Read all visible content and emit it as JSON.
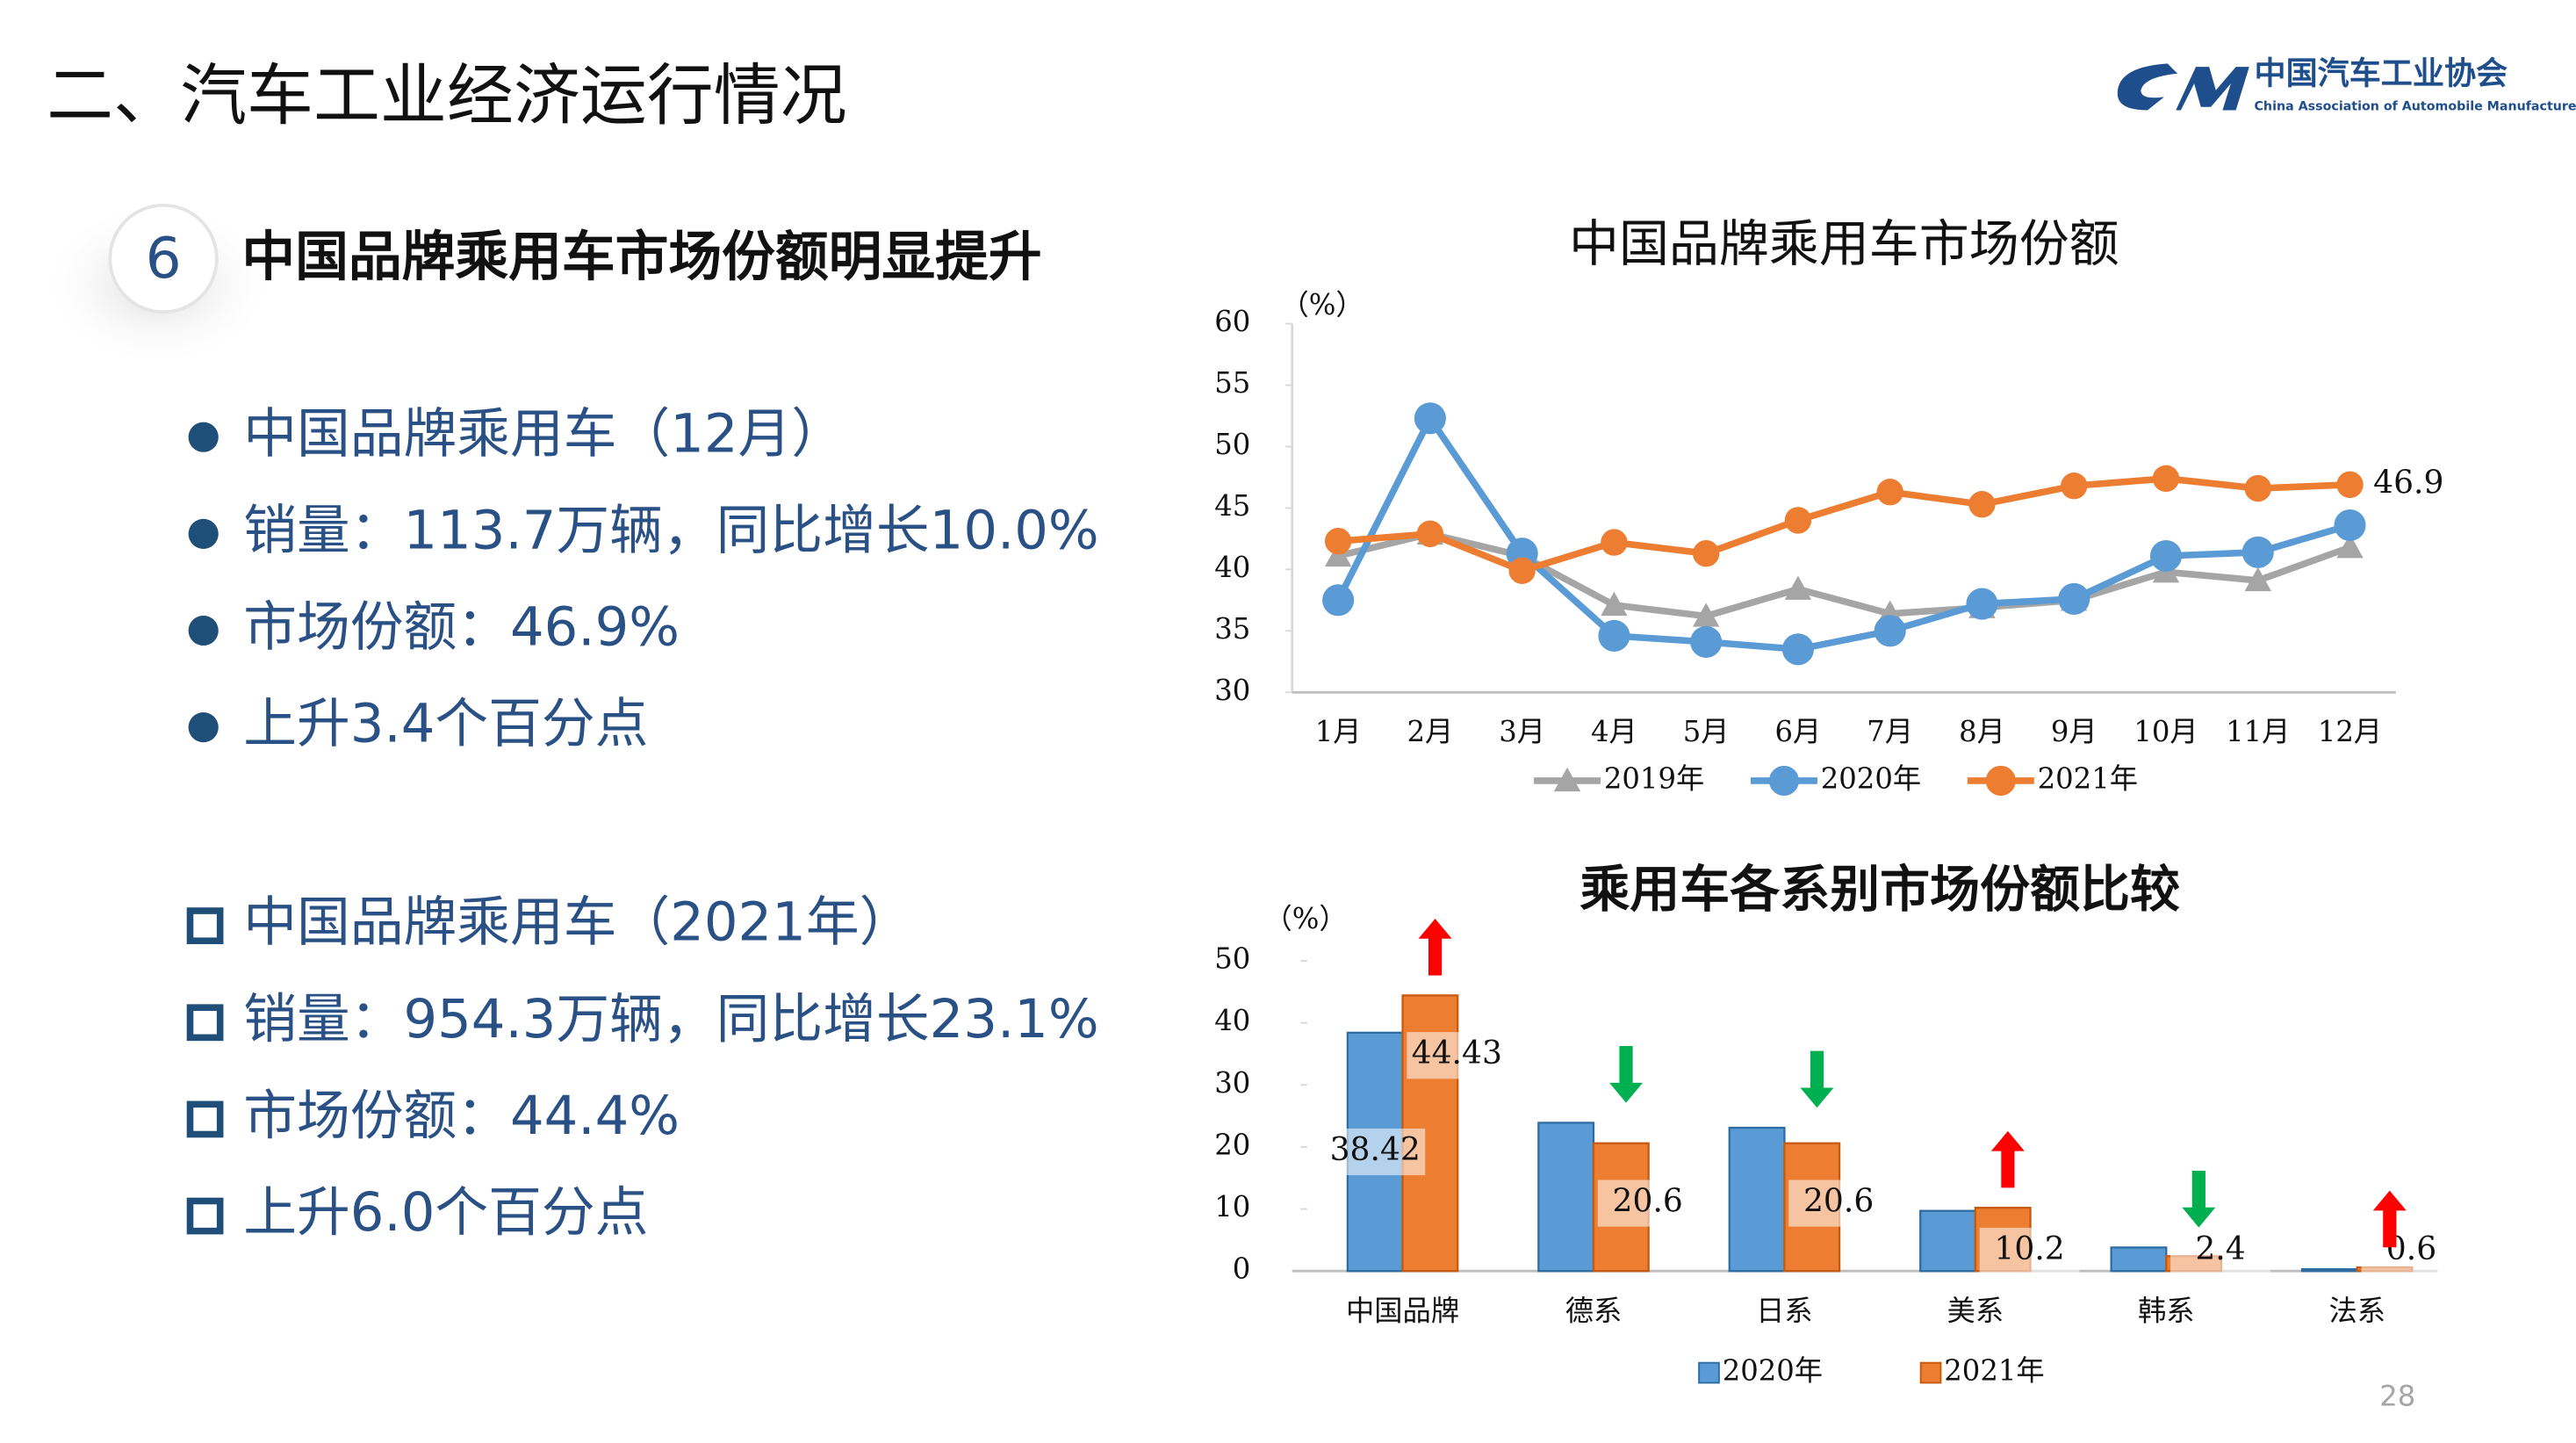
{
  "header": {
    "title": "二、汽车工业经济运行情况",
    "logo_name": "中国汽车工业协会",
    "logo_english": "China Association of Automobile Manufacturers"
  },
  "section": {
    "number": "6",
    "heading": "中国品牌乘用车市场份额明显提升"
  },
  "bullets_month": [
    "中国品牌乘用车（12月）",
    "销量：113.7万辆，同比增长10.0%",
    "市场份额：46.9%",
    "上升3.4个百分点"
  ],
  "bullets_year": [
    "中国品牌乘用车（2021年）",
    "销量：954.3万辆，同比增长23.1%",
    "市场份额：44.4%",
    "上升6.0个百分点"
  ],
  "page_number": "28",
  "chart_data": [
    {
      "type": "line",
      "title": "中国品牌乘用车市场份额",
      "y_unit": "（%）",
      "categories": [
        "1月",
        "2月",
        "3月",
        "4月",
        "5月",
        "6月",
        "7月",
        "8月",
        "9月",
        "10月",
        "11月",
        "12月"
      ],
      "series": [
        {
          "name": "2019年",
          "color": "#a5a5a5",
          "marker": "triangle",
          "values": [
            41.1,
            42.9,
            41.1,
            37.1,
            36.2,
            38.4,
            36.4,
            36.9,
            37.5,
            39.8,
            39.1,
            41.8
          ]
        },
        {
          "name": "2020年",
          "color": "#5b9bd5",
          "marker": "circle",
          "values": [
            37.5,
            52.3,
            41.3,
            34.6,
            34.1,
            33.5,
            35.0,
            37.2,
            37.6,
            41.1,
            41.4,
            43.6
          ]
        },
        {
          "name": "2021年",
          "color": "#ed7d31",
          "marker": "circle",
          "data_labels": "last",
          "values": [
            42.3,
            42.9,
            39.9,
            42.2,
            41.3,
            44.0,
            46.3,
            45.3,
            46.8,
            47.4,
            46.6,
            46.9
          ]
        }
      ],
      "ylim": [
        30,
        60
      ],
      "yticks": [
        30,
        35,
        40,
        45,
        50,
        55,
        60
      ],
      "legend": "bottom"
    },
    {
      "type": "bar",
      "title": "乘用车各系别市场份额比较",
      "y_unit": "（%）",
      "categories": [
        "中国品牌",
        "德系",
        "日系",
        "美系",
        "韩系",
        "法系"
      ],
      "series": [
        {
          "name": "2020年",
          "color": "#5b9bd5",
          "data_labels": "first",
          "values": [
            38.42,
            23.9,
            23.1,
            9.7,
            3.8,
            0.3
          ]
        },
        {
          "name": "2021年",
          "color": "#ed7d31",
          "data_labels": "all",
          "values": [
            44.43,
            20.6,
            20.6,
            10.2,
            2.4,
            0.6
          ]
        }
      ],
      "ylim": [
        0,
        50
      ],
      "yticks": [
        0,
        10,
        20,
        30,
        40,
        50
      ],
      "legend": "bottom",
      "change_arrows": true
    }
  ]
}
